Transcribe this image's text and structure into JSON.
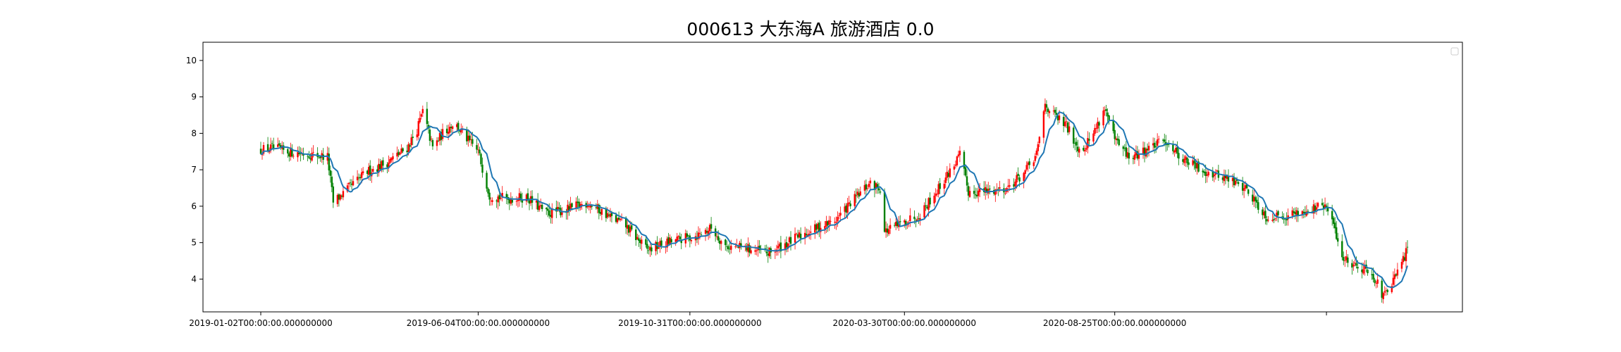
{
  "chart_data": {
    "type": "candlestick",
    "title": "000613 大东海A 旅游酒店 0.0",
    "xlabel": "",
    "ylabel": "",
    "x_range": [
      "2019-01-02",
      "2021-03-19"
    ],
    "ylim": [
      3.1,
      10.5
    ],
    "y_ticks": [
      4,
      5,
      6,
      7,
      8,
      9,
      10
    ],
    "x_ticks": [
      {
        "date": "2019-01-02",
        "label": "2019-01-02T00:00:00.000000000"
      },
      {
        "date": "2019-06-04",
        "label": "2019-06-04T00:00:00.000000000"
      },
      {
        "date": "2019-10-31",
        "label": "2019-10-31T00:00:00.000000000"
      },
      {
        "date": "2020-03-30",
        "label": "2020-03-30T00:00:00.000000000"
      },
      {
        "date": "2020-08-25",
        "label": "2020-08-25T00:00:00.000000000"
      },
      {
        "date": "2021-01-21",
        "label": ""
      }
    ],
    "grid": false,
    "legend": {
      "placement": "top-right",
      "entries": []
    },
    "colors": {
      "up": "#ff0000",
      "down": "#008000",
      "ma_line": "#1f77b4"
    },
    "price_path": [
      [
        "2019-01-02",
        7.55
      ],
      [
        "2019-01-10",
        7.6
      ],
      [
        "2019-01-20",
        7.5
      ],
      [
        "2019-02-10",
        7.4
      ],
      [
        "2019-02-18",
        7.35
      ],
      [
        "2019-02-22",
        6.1
      ],
      [
        "2019-03-05",
        6.5
      ],
      [
        "2019-03-18",
        6.95
      ],
      [
        "2019-04-01",
        7.2
      ],
      [
        "2019-04-15",
        7.6
      ],
      [
        "2019-04-22",
        8.1
      ],
      [
        "2019-04-26",
        8.6
      ],
      [
        "2019-05-03",
        7.6
      ],
      [
        "2019-05-10",
        8.0
      ],
      [
        "2019-05-18",
        8.3
      ],
      [
        "2019-05-28",
        7.8
      ],
      [
        "2019-06-04",
        7.5
      ],
      [
        "2019-06-12",
        6.3
      ],
      [
        "2019-06-25",
        6.2
      ],
      [
        "2019-07-08",
        6.25
      ],
      [
        "2019-07-22",
        5.8
      ],
      [
        "2019-08-05",
        5.9
      ],
      [
        "2019-08-20",
        6.1
      ],
      [
        "2019-09-05",
        5.7
      ],
      [
        "2019-09-15",
        5.5
      ],
      [
        "2019-09-24",
        5.1
      ],
      [
        "2019-10-01",
        4.8
      ],
      [
        "2019-10-15",
        5.0
      ],
      [
        "2019-11-05",
        5.2
      ],
      [
        "2019-11-15",
        5.4
      ],
      [
        "2019-11-25",
        4.9
      ],
      [
        "2019-12-10",
        4.85
      ],
      [
        "2019-12-25",
        4.7
      ],
      [
        "2020-01-08",
        5.0
      ],
      [
        "2020-01-22",
        5.3
      ],
      [
        "2020-02-10",
        5.6
      ],
      [
        "2020-02-24",
        6.2
      ],
      [
        "2020-03-05",
        6.6
      ],
      [
        "2020-03-13",
        6.5
      ],
      [
        "2020-03-16",
        5.3
      ],
      [
        "2020-03-27",
        5.5
      ],
      [
        "2020-04-10",
        5.8
      ],
      [
        "2020-04-25",
        6.6
      ],
      [
        "2020-05-08",
        7.4
      ],
      [
        "2020-05-14",
        6.4
      ],
      [
        "2020-05-25",
        6.4
      ],
      [
        "2020-06-10",
        6.5
      ],
      [
        "2020-06-22",
        6.9
      ],
      [
        "2020-07-01",
        7.4
      ],
      [
        "2020-07-07",
        8.8
      ],
      [
        "2020-07-13",
        8.5
      ],
      [
        "2020-07-22",
        8.2
      ],
      [
        "2020-08-01",
        7.5
      ],
      [
        "2020-08-10",
        8.0
      ],
      [
        "2020-08-18",
        8.7
      ],
      [
        "2020-08-25",
        7.8
      ],
      [
        "2020-09-05",
        7.3
      ],
      [
        "2020-09-18",
        7.6
      ],
      [
        "2020-09-30",
        7.8
      ],
      [
        "2020-10-12",
        7.3
      ],
      [
        "2020-10-25",
        7.0
      ],
      [
        "2020-11-10",
        6.8
      ],
      [
        "2020-11-25",
        6.5
      ],
      [
        "2020-12-10",
        5.7
      ],
      [
        "2020-12-25",
        5.75
      ],
      [
        "2021-01-08",
        5.9
      ],
      [
        "2021-01-20",
        6.0
      ],
      [
        "2021-01-26",
        5.5
      ],
      [
        "2021-02-01",
        4.6
      ],
      [
        "2021-02-10",
        4.4
      ],
      [
        "2021-02-22",
        4.2
      ],
      [
        "2021-03-02",
        3.5
      ],
      [
        "2021-03-10",
        4.0
      ],
      [
        "2021-03-19",
        4.8
      ]
    ]
  }
}
